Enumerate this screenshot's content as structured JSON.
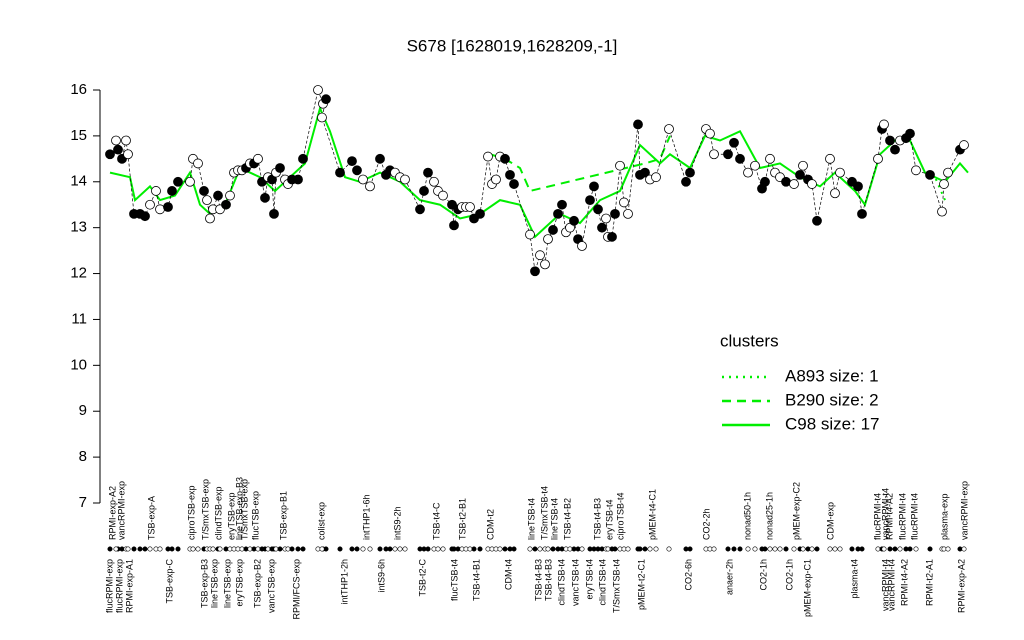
{
  "chart_data": {
    "type": "scatter",
    "title": "S678 [1628019,1628209,-1]",
    "xlim": [
      0,
      865
    ],
    "ylim": [
      7,
      16
    ],
    "yticks": [
      7,
      8,
      9,
      10,
      11,
      12,
      13,
      14,
      15,
      16
    ],
    "points": {
      "x": [
        5,
        13,
        11,
        17,
        21,
        23,
        29,
        35,
        40,
        45,
        51,
        55,
        63,
        67,
        73,
        85,
        88,
        93,
        99,
        102,
        105,
        108,
        113,
        115,
        121,
        125,
        129,
        133,
        137,
        141,
        145,
        149,
        153,
        157,
        160,
        163,
        167,
        169,
        171,
        175,
        180,
        183,
        187,
        193,
        198,
        213,
        218,
        221,
        217,
        235,
        247,
        252,
        258,
        265,
        275,
        281,
        285,
        290,
        295,
        300,
        315,
        319,
        323,
        329,
        333,
        338,
        347,
        349,
        353,
        357,
        361,
        365,
        369,
        375,
        383,
        387,
        391,
        395,
        400,
        405,
        409,
        425,
        430,
        435,
        440,
        443,
        448,
        453,
        457,
        461,
        465,
        469,
        473,
        477,
        485,
        489,
        493,
        497,
        501,
        503,
        507,
        510,
        515,
        519,
        523,
        533,
        535,
        540,
        545,
        551,
        564,
        581,
        585,
        601,
        605,
        609,
        623,
        629,
        635,
        643,
        650,
        657,
        660,
        665,
        670,
        675,
        681,
        689,
        695,
        698,
        703,
        707,
        712,
        725,
        730,
        735,
        747,
        753,
        757,
        773,
        777,
        779,
        785,
        790,
        795,
        801,
        805,
        811,
        825,
        837,
        839,
        843,
        855,
        859
      ],
      "y": [
        14.6,
        14.7,
        14.9,
        14.5,
        14.9,
        14.6,
        13.3,
        13.3,
        13.25,
        13.5,
        13.8,
        13.4,
        13.45,
        13.8,
        14.0,
        14.0,
        14.5,
        14.4,
        13.8,
        13.6,
        13.2,
        13.4,
        13.7,
        13.4,
        13.5,
        13.7,
        14.2,
        14.25,
        14.25,
        14.3,
        14.4,
        14.4,
        14.5,
        14.0,
        13.65,
        14.1,
        14.05,
        13.3,
        14.2,
        14.3,
        14.05,
        13.95,
        14.05,
        14.05,
        14.5,
        16.0,
        15.7,
        15.8,
        15.4,
        14.2,
        14.45,
        14.25,
        14.05,
        13.9,
        14.5,
        14.15,
        14.25,
        14.2,
        14.1,
        14.05,
        13.4,
        13.8,
        14.2,
        14.0,
        13.8,
        13.7,
        13.5,
        13.05,
        13.4,
        13.45,
        13.45,
        13.45,
        13.2,
        13.3,
        14.55,
        13.95,
        14.05,
        14.55,
        14.5,
        14.15,
        13.95,
        12.85,
        12.05,
        12.4,
        12.2,
        12.75,
        12.95,
        13.3,
        13.5,
        12.9,
        13.0,
        13.15,
        12.75,
        12.6,
        13.6,
        13.9,
        13.4,
        13.0,
        13.2,
        12.8,
        12.8,
        13.3,
        14.35,
        13.55,
        13.3,
        15.25,
        14.15,
        14.2,
        14.05,
        14.1,
        15.15,
        14.0,
        14.2,
        15.15,
        15.05,
        14.6,
        14.6,
        14.85,
        14.5,
        14.2,
        14.35,
        13.85,
        14.0,
        14.5,
        14.2,
        14.1,
        14.0,
        13.95,
        14.15,
        14.35,
        14.05,
        13.95,
        13.15,
        14.5,
        13.75,
        14.2,
        14.0,
        13.9,
        13.3,
        14.5,
        15.15,
        15.25,
        14.9,
        14.7,
        14.9,
        14.95,
        15.05,
        14.25,
        14.15,
        13.35,
        13.95,
        14.2,
        14.7,
        14.8
      ],
      "filled": [
        1,
        1,
        0,
        1,
        0,
        0,
        1,
        1,
        1,
        0,
        0,
        0,
        1,
        1,
        1,
        0,
        0,
        0,
        1,
        0,
        0,
        0,
        1,
        0,
        1,
        0,
        0,
        0,
        0,
        1,
        0,
        1,
        0,
        1,
        1,
        0,
        1,
        1,
        0,
        1,
        0,
        0,
        1,
        1,
        1,
        0,
        0,
        1,
        0,
        1,
        1,
        1,
        0,
        0,
        1,
        1,
        1,
        0,
        0,
        0,
        1,
        1,
        1,
        0,
        0,
        0,
        1,
        1,
        1,
        0,
        0,
        0,
        1,
        1,
        0,
        0,
        0,
        0,
        1,
        1,
        1,
        0,
        1,
        0,
        0,
        0,
        1,
        1,
        1,
        0,
        0,
        1,
        1,
        0,
        1,
        1,
        1,
        1,
        0,
        0,
        1,
        1,
        0,
        0,
        0,
        1,
        1,
        1,
        0,
        0,
        0,
        1,
        1,
        0,
        0,
        0,
        1,
        1,
        1,
        0,
        0,
        1,
        1,
        0,
        0,
        0,
        1,
        0,
        1,
        0,
        1,
        0,
        1,
        0,
        0,
        0,
        1,
        1,
        1,
        0,
        1,
        0,
        1,
        1,
        0,
        1,
        1,
        0,
        1,
        0,
        0,
        0,
        1,
        0
      ]
    },
    "series": [
      {
        "name": "A893 size: 1",
        "color": "#00ee00",
        "style": "dotted",
        "x": [
          828,
          840
        ],
        "y": [
          14.2,
          13.6
        ]
      },
      {
        "name": "B290 size: 2",
        "color": "#00ee00",
        "style": "dashed",
        "x": [
          385,
          400,
          415,
          425,
          540,
          555,
          565
        ],
        "y": [
          14.6,
          14.5,
          14.3,
          13.8,
          14.4,
          14.5,
          15.0
        ]
      },
      {
        "name": "C98 size: 17",
        "color": "#00ee00",
        "style": "solid",
        "x": [
          5,
          25,
          30,
          45,
          55,
          70,
          85,
          95,
          105,
          120,
          135,
          155,
          170,
          185,
          200,
          215,
          225,
          240,
          255,
          275,
          295,
          315,
          335,
          355,
          375,
          395,
          415,
          430,
          440,
          455,
          475,
          495,
          515,
          535,
          555,
          565,
          585,
          600,
          615,
          635,
          655,
          675,
          695,
          715,
          730,
          750,
          760,
          775,
          790,
          805,
          820,
          840,
          855,
          863
        ],
        "y": [
          14.2,
          14.1,
          13.6,
          13.9,
          13.6,
          13.7,
          14.2,
          13.5,
          13.3,
          13.5,
          14.3,
          14.1,
          13.8,
          14.1,
          14.4,
          15.6,
          15.1,
          14.1,
          14.0,
          14.2,
          14.0,
          13.6,
          13.5,
          13.2,
          13.3,
          13.6,
          13.5,
          12.8,
          13.0,
          13.3,
          13.1,
          13.6,
          13.8,
          14.8,
          14.4,
          14.6,
          14.3,
          15.0,
          14.9,
          15.1,
          14.3,
          14.4,
          14.1,
          13.9,
          14.2,
          13.8,
          13.5,
          14.6,
          14.9,
          14.9,
          14.2,
          14.0,
          14.4,
          14.2
        ]
      }
    ],
    "legend_title": "clusters",
    "top_labels": {
      "labels": [
        "RPMI-exp-A2",
        "vancRPMI-exp",
        "TSB-exp-A",
        "ciproTSB-exp",
        "T/SmxTSB-exp",
        "clindTSB-exp",
        "eryTSB-exp",
        "lineTSB-exp-B3",
        "T/SmxTSB-exp",
        "flucTSB-exp",
        "TSB-exp-B1",
        "colist-exp",
        "intTHP1-6h",
        "intS9-2h",
        "TSB-t4-C",
        "TSB-t2-B1",
        "CDM-t2",
        "lineTSB-t4",
        "T/SmxTSB-t4",
        "lineTSB-t4",
        "TSB-t4-B2",
        "TSB-t4-B3",
        "eryTSB-t4",
        "ciproTSB-t4",
        "pMEM-t4-C1",
        "CO2-2h",
        "nonad50-1h",
        "nonad25-1h",
        "pMEM-exp-C2",
        "CDM-exp",
        "flucRPMI-t4",
        "vancRPMI-t4",
        "RPMI-t4-A2",
        "flucRPMI-t4",
        "flucRPMI-t4",
        "plasma-exp",
        "vancRPMI-exp"
      ],
      "x": [
        8,
        17,
        47,
        87,
        101,
        114,
        127,
        135,
        140,
        151,
        179,
        217,
        262,
        293,
        332,
        358,
        386,
        427,
        440,
        450,
        463,
        493,
        505,
        516,
        548,
        602,
        643,
        665,
        692,
        726,
        773,
        781,
        785,
        798,
        810,
        840,
        860
      ]
    },
    "bottom_labels": {
      "labels": [
        "flucRPMI-exp",
        "flucRPMI-exp",
        "RPMI-exp-A1",
        "TSB-exp-C",
        "TSB-exp-B3",
        "lineTSB-exp",
        "lineTSB-exp",
        "eryTSB-exp",
        "TSB-exp-B2",
        "vancTSB-exp",
        "RPMI/FCS-exp",
        "intTHP1-2h",
        "intS9-6h",
        "TSB-t2-C",
        "flucTSB-t4",
        "TSB-t4-B1",
        "CDM-t4",
        "TSB-t4-B3",
        "TSB-t4-B3",
        "clindTSB-t4",
        "vancTSB-t4",
        "eryTSB-t4",
        "clindTSB-t4",
        "T/SmxTSB-t4",
        "pMEM-t2-C1",
        "CO2-6h",
        "anaer-2h",
        "CO2-1h",
        "CO2-1h",
        "pMEM-exp-C1",
        "plasma-t4",
        "vancRPMI-t4",
        "vancRPMI-t4",
        "RPMI-t4-A2",
        "RPMI-t2-A1",
        "RPMI-exp-A2"
      ],
      "x": [
        5,
        15,
        25,
        65,
        100,
        110,
        123,
        135,
        153,
        167,
        192,
        240,
        277,
        318,
        350,
        372,
        404,
        434,
        444,
        457,
        471,
        485,
        498,
        512,
        537,
        584,
        625,
        659,
        685,
        703,
        750,
        781,
        787,
        800,
        825,
        857
      ]
    }
  }
}
